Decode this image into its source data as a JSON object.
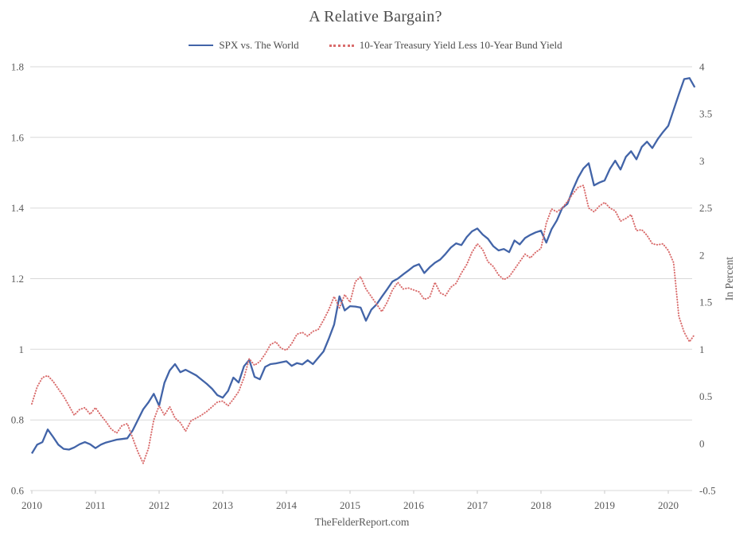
{
  "title": "A Relative Bargain?",
  "footer": "TheFelderReport.com",
  "chart_data": {
    "type": "line",
    "title": "A Relative Bargain?",
    "source": "TheFelderReport.com",
    "x_min": 2010,
    "x_step": 0.0833333,
    "x_ticks": [
      2010,
      2011,
      2012,
      2013,
      2014,
      2015,
      2016,
      2017,
      2018,
      2019,
      2020
    ],
    "left_axis": {
      "min": 0.6,
      "max": 1.8,
      "ticks": [
        0.6,
        0.8,
        1,
        1.2,
        1.4,
        1.6,
        1.8
      ],
      "label": ""
    },
    "right_axis": {
      "min": -0.5,
      "max": 4,
      "ticks": [
        -0.5,
        0,
        0.5,
        1,
        1.5,
        2,
        2.5,
        3,
        3.5,
        4
      ],
      "label": "In Percent"
    },
    "grid_color": "#d9d9d9",
    "text_color": "#595959",
    "legend_position": "top",
    "series": [
      {
        "name": "SPX vs. The World",
        "axis": "left",
        "color": "#4264a8",
        "style": "solid",
        "values": [
          0.705,
          0.73,
          0.737,
          0.773,
          0.752,
          0.73,
          0.718,
          0.716,
          0.722,
          0.731,
          0.737,
          0.731,
          0.72,
          0.73,
          0.736,
          0.74,
          0.744,
          0.746,
          0.748,
          0.77,
          0.8,
          0.83,
          0.85,
          0.874,
          0.84,
          0.905,
          0.94,
          0.958,
          0.935,
          0.942,
          0.934,
          0.926,
          0.914,
          0.902,
          0.888,
          0.87,
          0.863,
          0.882,
          0.92,
          0.906,
          0.952,
          0.97,
          0.922,
          0.915,
          0.95,
          0.958,
          0.96,
          0.963,
          0.966,
          0.953,
          0.961,
          0.957,
          0.969,
          0.958,
          0.976,
          0.994,
          1.03,
          1.07,
          1.15,
          1.11,
          1.122,
          1.121,
          1.118,
          1.081,
          1.112,
          1.127,
          1.149,
          1.17,
          1.192,
          1.2,
          1.212,
          1.223,
          1.235,
          1.241,
          1.216,
          1.232,
          1.245,
          1.254,
          1.27,
          1.288,
          1.3,
          1.295,
          1.318,
          1.334,
          1.342,
          1.325,
          1.313,
          1.292,
          1.28,
          1.284,
          1.275,
          1.308,
          1.297,
          1.315,
          1.324,
          1.331,
          1.336,
          1.302,
          1.34,
          1.365,
          1.4,
          1.412,
          1.452,
          1.486,
          1.512,
          1.527,
          1.464,
          1.472,
          1.478,
          1.511,
          1.534,
          1.509,
          1.545,
          1.561,
          1.538,
          1.573,
          1.588,
          1.57,
          1.595,
          1.615,
          1.633,
          1.678,
          1.722,
          1.765,
          1.768,
          1.742
        ]
      },
      {
        "name": "10-Year Treasury Yield Less 10-Year Bund Yield",
        "axis": "right",
        "color": "#d96c6c",
        "style": "dotted",
        "values": [
          0.42,
          0.6,
          0.7,
          0.72,
          0.66,
          0.58,
          0.5,
          0.4,
          0.3,
          0.36,
          0.38,
          0.31,
          0.38,
          0.3,
          0.23,
          0.15,
          0.11,
          0.19,
          0.21,
          0.06,
          -0.09,
          -0.21,
          -0.05,
          0.25,
          0.4,
          0.3,
          0.39,
          0.27,
          0.22,
          0.13,
          0.24,
          0.27,
          0.3,
          0.34,
          0.39,
          0.44,
          0.45,
          0.4,
          0.47,
          0.55,
          0.7,
          0.9,
          0.83,
          0.87,
          0.95,
          1.05,
          1.08,
          1.01,
          0.99,
          1.06,
          1.16,
          1.18,
          1.14,
          1.19,
          1.21,
          1.31,
          1.42,
          1.56,
          1.44,
          1.58,
          1.5,
          1.72,
          1.77,
          1.64,
          1.56,
          1.48,
          1.4,
          1.5,
          1.63,
          1.71,
          1.64,
          1.65,
          1.63,
          1.61,
          1.53,
          1.55,
          1.71,
          1.6,
          1.57,
          1.66,
          1.7,
          1.81,
          1.9,
          2.03,
          2.12,
          2.06,
          1.93,
          1.88,
          1.79,
          1.74,
          1.77,
          1.85,
          1.93,
          2.01,
          1.97,
          2.03,
          2.07,
          2.34,
          2.49,
          2.46,
          2.5,
          2.57,
          2.65,
          2.72,
          2.74,
          2.5,
          2.46,
          2.52,
          2.56,
          2.5,
          2.47,
          2.36,
          2.39,
          2.43,
          2.26,
          2.27,
          2.21,
          2.12,
          2.11,
          2.12,
          2.05,
          1.92,
          1.35,
          1.18,
          1.08,
          1.16
        ]
      }
    ]
  }
}
